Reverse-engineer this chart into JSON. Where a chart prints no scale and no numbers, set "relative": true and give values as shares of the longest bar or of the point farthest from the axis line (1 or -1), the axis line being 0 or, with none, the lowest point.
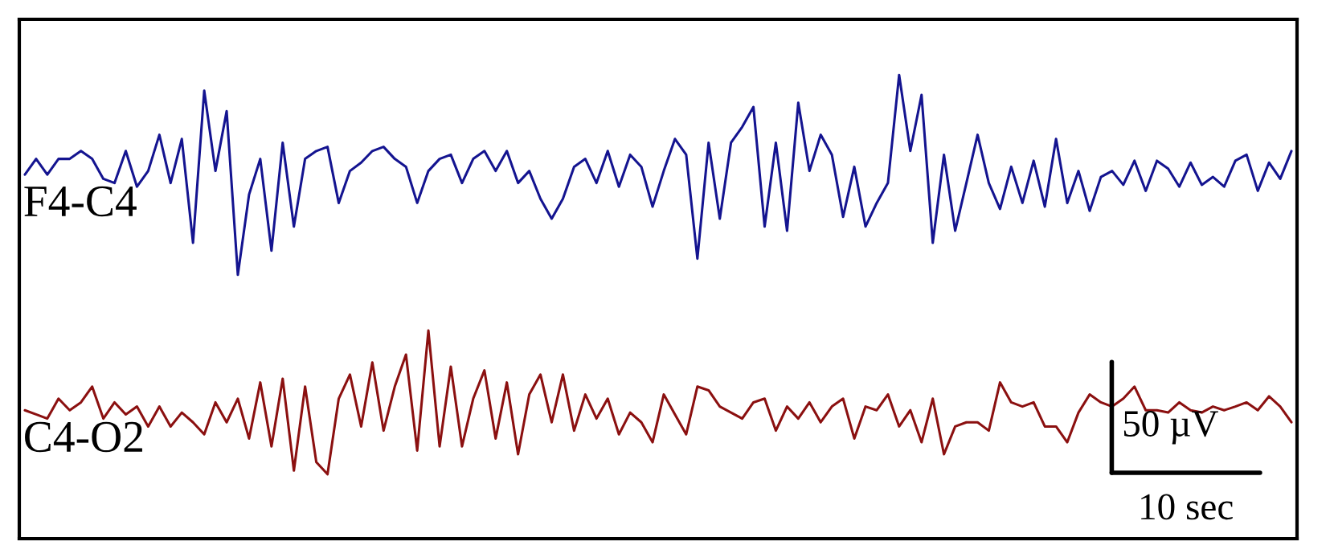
{
  "chart_data": {
    "type": "line",
    "relative": true,
    "legend": false,
    "marker": "none",
    "line_style": "solid",
    "categories": [
      null,
      null,
      null,
      null,
      null,
      null,
      null,
      null,
      null,
      null,
      null,
      null,
      null,
      null,
      null,
      null,
      null,
      null,
      null,
      null,
      null,
      null,
      null,
      null,
      null,
      null,
      null,
      null,
      null,
      null,
      null,
      null,
      null,
      null,
      null,
      null,
      null,
      null,
      null,
      null,
      null,
      null,
      null,
      null,
      null,
      null,
      null,
      null,
      null,
      null,
      null,
      null,
      null,
      null,
      null,
      null,
      null,
      null,
      null,
      null,
      null,
      null,
      null,
      null,
      null,
      null,
      null,
      null,
      null,
      null,
      null,
      null,
      null,
      null,
      null,
      null,
      null,
      null,
      null,
      null,
      null,
      null,
      null,
      null,
      null,
      null,
      null,
      null,
      null,
      null,
      null,
      null,
      null,
      null,
      null,
      null,
      null,
      null,
      null,
      null,
      null,
      null,
      null,
      null,
      null,
      null,
      null,
      null,
      null,
      null,
      null,
      null,
      null,
      null
    ],
    "annotations": [
      "50 µV",
      "10 sec"
    ],
    "series": [
      {
        "name": "F4-C4",
        "color": "#141490",
        "values": [
          0.785,
          0.819,
          0.785,
          0.819,
          0.819,
          0.836,
          0.819,
          0.776,
          0.767,
          0.836,
          0.759,
          0.793,
          0.871,
          0.767,
          0.862,
          0.638,
          0.966,
          0.793,
          0.922,
          0.569,
          0.742,
          0.819,
          0.621,
          0.854,
          0.673,
          0.819,
          0.836,
          0.845,
          0.724,
          0.793,
          0.811,
          0.836,
          0.845,
          0.819,
          0.802,
          0.724,
          0.793,
          0.819,
          0.828,
          0.767,
          0.819,
          0.836,
          0.793,
          0.836,
          0.767,
          0.793,
          0.733,
          0.69,
          0.733,
          0.802,
          0.819,
          0.767,
          0.836,
          0.759,
          0.828,
          0.802,
          0.716,
          0.793,
          0.862,
          0.828,
          0.604,
          0.854,
          0.69,
          0.854,
          0.888,
          0.931,
          0.673,
          0.854,
          0.664,
          0.94,
          0.793,
          0.871,
          0.828,
          0.694,
          0.802,
          0.673,
          0.724,
          0.767,
          1.0,
          0.836,
          0.957,
          0.638,
          0.828,
          0.664,
          0.767,
          0.871,
          0.767,
          0.711,
          0.802,
          0.724,
          0.815,
          0.716,
          0.862,
          0.724,
          0.793,
          0.707,
          0.78,
          0.793,
          0.763,
          0.815,
          0.75,
          0.815,
          0.798,
          0.759,
          0.811,
          0.763,
          0.78,
          0.759,
          0.815,
          0.828,
          0.75,
          0.811,
          0.776,
          0.836
        ]
      },
      {
        "name": "C4-O2",
        "color": "#8b1010",
        "values": [
          0.277,
          0.268,
          0.259,
          0.302,
          0.277,
          0.294,
          0.328,
          0.259,
          0.294,
          0.268,
          0.285,
          0.242,
          0.285,
          0.242,
          0.272,
          0.251,
          0.225,
          0.294,
          0.251,
          0.302,
          0.216,
          0.337,
          0.199,
          0.345,
          0.147,
          0.328,
          0.165,
          0.139,
          0.302,
          0.354,
          0.242,
          0.38,
          0.233,
          0.328,
          0.397,
          0.19,
          0.449,
          0.199,
          0.371,
          0.199,
          0.302,
          0.363,
          0.216,
          0.337,
          0.182,
          0.311,
          0.354,
          0.251,
          0.354,
          0.233,
          0.311,
          0.259,
          0.302,
          0.225,
          0.272,
          0.251,
          0.208,
          0.311,
          0.268,
          0.225,
          0.328,
          0.32,
          0.285,
          0.272,
          0.259,
          0.294,
          0.302,
          0.233,
          0.285,
          0.259,
          0.294,
          0.251,
          0.285,
          0.302,
          0.216,
          0.285,
          0.277,
          0.311,
          0.242,
          0.277,
          0.208,
          0.302,
          0.182,
          0.242,
          0.251,
          0.251,
          0.233,
          0.337,
          0.294,
          0.285,
          0.294,
          0.242,
          0.242,
          0.208,
          0.272,
          0.311,
          0.294,
          0.285,
          0.302,
          0.328,
          0.277,
          0.277,
          0.272,
          0.294,
          0.277,
          0.272,
          0.285,
          0.277,
          0.285,
          0.294,
          0.277,
          0.307,
          0.285,
          0.251
        ]
      }
    ]
  }
}
